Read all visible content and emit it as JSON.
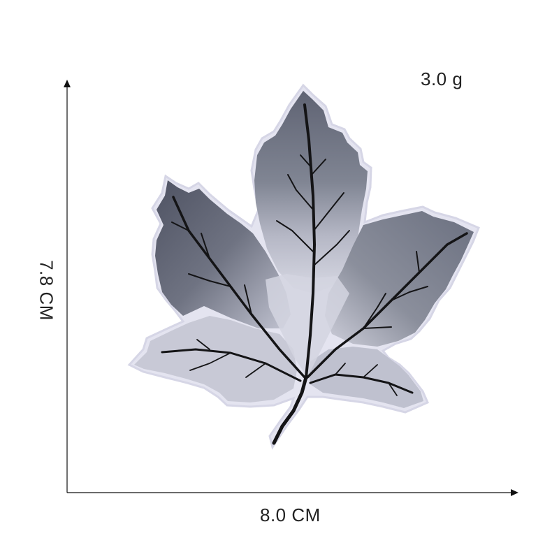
{
  "labels": {
    "weight": "3.0 g",
    "width": "8.0 CM",
    "height": "7.8 CM"
  },
  "colors": {
    "background": "#ffffff",
    "axis": "#111111",
    "leaf_dark": "#5c6170",
    "leaf_mid": "#7d828f",
    "leaf_light": "#c9cbd6",
    "leaf_edge": "#e6e6f2",
    "vein": "#141416"
  },
  "image": {
    "subject": "maple-leaf-embroidered-patch"
  }
}
